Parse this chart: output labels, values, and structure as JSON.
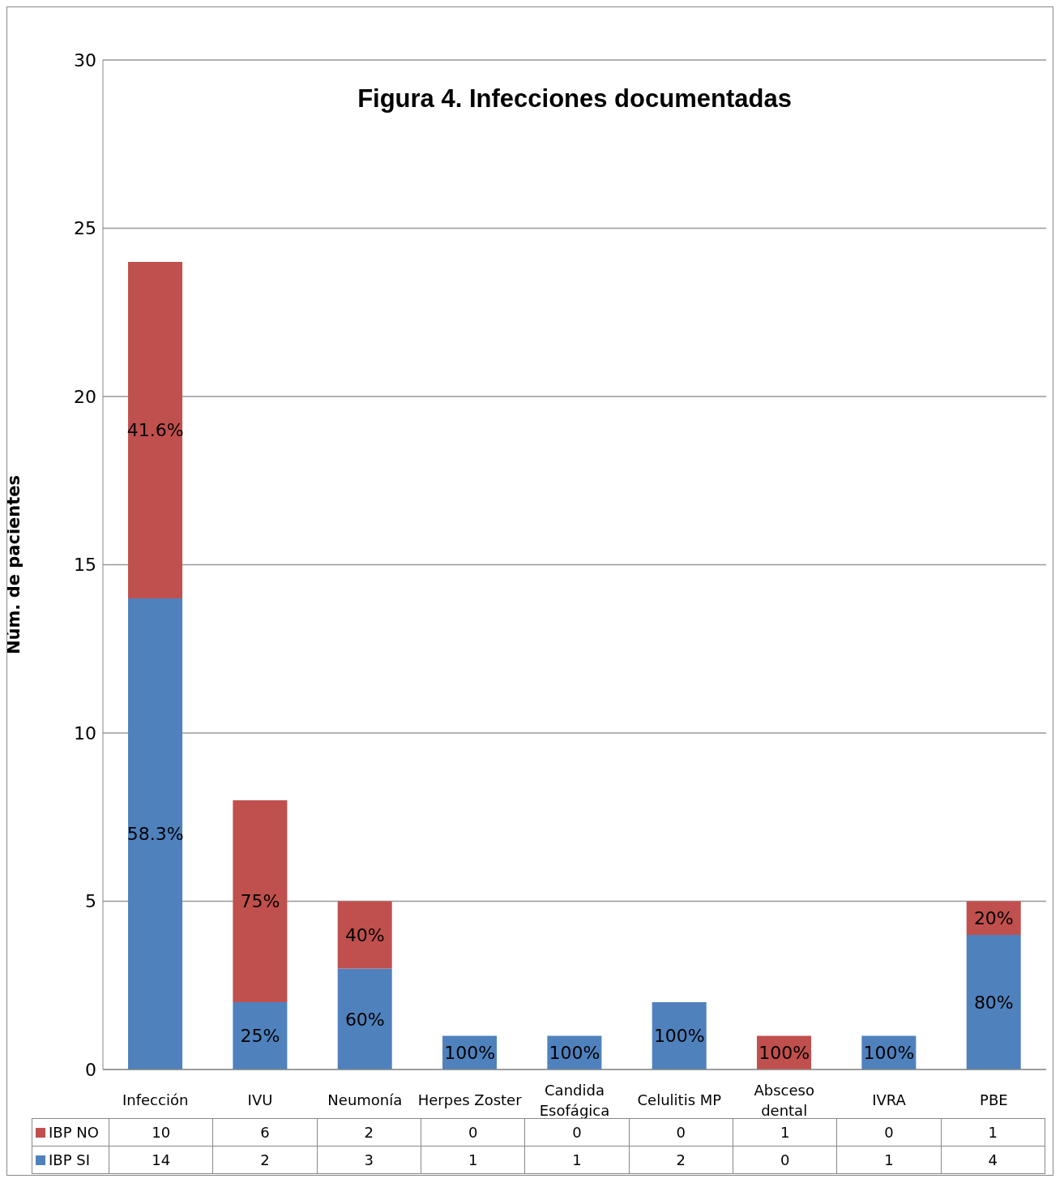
{
  "chart_data": {
    "type": "bar",
    "title": "Figura 4. Infecciones documentadas",
    "ylabel": "Núm. de pacientes",
    "categories": [
      "Infección",
      "IVU",
      "Neumonía",
      "Herpes Zoster",
      "Candida Esofágica",
      "Celulitis MP",
      "Absceso dental",
      "IVRA",
      "PBE"
    ],
    "series": [
      {
        "name": "IBP SI",
        "color": "#4f81bd",
        "values": [
          14,
          2,
          3,
          1,
          1,
          2,
          0,
          1,
          4
        ]
      },
      {
        "name": "IBP NO",
        "color": "#c0504d",
        "values": [
          10,
          6,
          2,
          0,
          0,
          0,
          1,
          0,
          1
        ]
      }
    ],
    "stacked": true,
    "ylim": [
      0,
      30
    ],
    "yticks": [
      0,
      5,
      10,
      15,
      20,
      25,
      30
    ],
    "grid": "y",
    "legend": "bottom",
    "data_labels": true,
    "annotations": [
      "58.3%",
      "41.6%",
      "25%",
      "75%",
      "60%",
      "40%",
      "100%",
      "100%",
      "100%",
      "100%",
      "100%",
      "80%",
      "20%"
    ]
  }
}
